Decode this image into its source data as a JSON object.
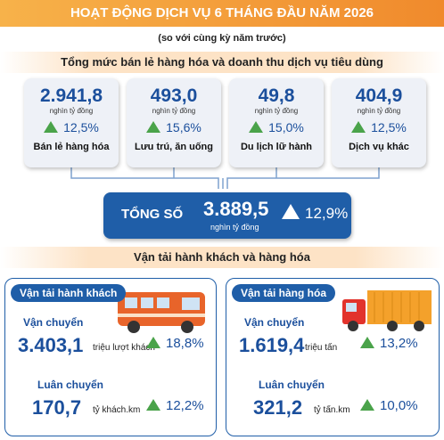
{
  "header": {
    "title": "HOẠT ĐỘNG DỊCH VỤ 6 THÁNG ĐẦU NĂM 2026",
    "subtitle": "(so với cùng kỳ năm trước)"
  },
  "retail": {
    "title": "Tổng mức bán lẻ hàng hóa và doanh thu dịch vụ tiêu dùng",
    "items": [
      {
        "value": "2.941,8",
        "unit": "nghìn tỷ đồng",
        "growth": "12,5%",
        "label": "Bán lẻ hàng hóa"
      },
      {
        "value": "493,0",
        "unit": "nghìn tỷ đồng",
        "growth": "15,6%",
        "label": "Lưu trú, ăn uống"
      },
      {
        "value": "49,8",
        "unit": "nghìn tỷ đồng",
        "growth": "15,0%",
        "label": "Du lịch lữ hành"
      },
      {
        "value": "404,9",
        "unit": "nghìn tỷ đồng",
        "growth": "12,5%",
        "label": "Dịch vụ khác"
      }
    ],
    "total": {
      "label": "TỔNG SỐ",
      "value": "3.889,5",
      "unit": "nghìn tỷ đồng",
      "growth": "12,9%"
    }
  },
  "transport": {
    "title": "Vận tải hành khách và hàng hóa",
    "panels": [
      {
        "title": "Vận tải hành khách",
        "rows": [
          {
            "label": "Vận chuyển",
            "value": "3.403,1",
            "unit": "triệu lượt khách",
            "growth": "18,8%"
          },
          {
            "label": "Luân chuyển",
            "value": "170,7",
            "unit": "tỷ khách.km",
            "growth": "12,2%"
          }
        ]
      },
      {
        "title": "Vận tải hàng hóa",
        "rows": [
          {
            "label": "Vận chuyển",
            "value": "1.619,4",
            "unit": "triệu tấn",
            "growth": "13,2%"
          },
          {
            "label": "Luân chuyển",
            "value": "321,2",
            "unit": "tỷ tấn.km",
            "growth": "10,0%"
          }
        ]
      }
    ]
  }
}
